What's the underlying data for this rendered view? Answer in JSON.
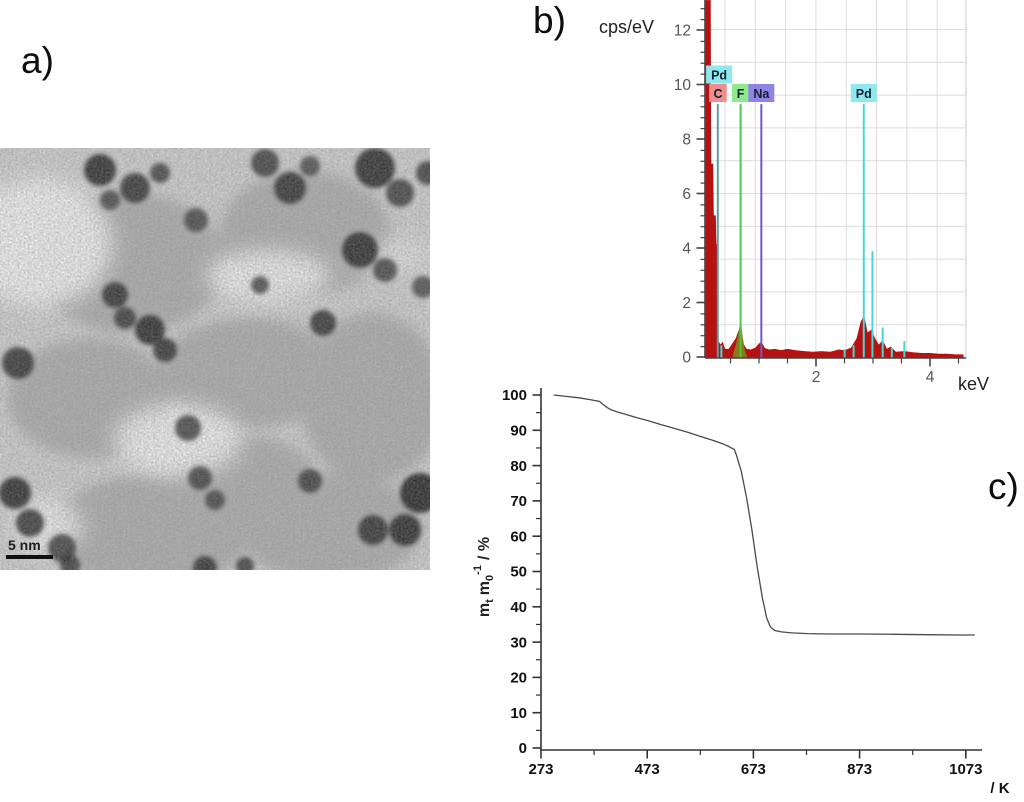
{
  "panels": {
    "a_label": "a)",
    "b_label": "b)",
    "c_label": "c)"
  },
  "tem": {
    "scale_bar_label": "5 nm"
  },
  "edx": {
    "y_axis_label": "cps/eV",
    "x_axis_label": "keV",
    "y_tick_labels": [
      "12",
      "10",
      "8",
      "6",
      "4",
      "2",
      "0"
    ],
    "x_tick_labels": [
      "2",
      "4"
    ],
    "element_labels": [
      {
        "label": "Pd",
        "keV": 0.3,
        "row": 0,
        "box_color": "#8ee9ee"
      },
      {
        "label": "C",
        "keV": 0.28,
        "row": 1,
        "box_color": "#ef8f8d"
      },
      {
        "label": "F",
        "keV": 0.677,
        "row": 1,
        "box_color": "#8fe98f"
      },
      {
        "label": "Na",
        "keV": 1.041,
        "row": 1,
        "box_color": "#8f83e3"
      },
      {
        "label": "Pd",
        "keV": 2.838,
        "row": 1,
        "box_color": "#8ee9ee"
      }
    ]
  },
  "tga": {
    "y_label_parts": {
      "m1": "m",
      "sub1": "t",
      "m2": "m",
      "sub2": "0",
      "sup2": "-1",
      "unit": "/ %"
    },
    "x_unit_label": "/ K",
    "y_tick_labels": [
      "100",
      "90",
      "80",
      "70",
      "60",
      "50",
      "40",
      "30",
      "20",
      "10",
      "0"
    ],
    "x_tick_labels": [
      "273",
      "473",
      "673",
      "873",
      "1073"
    ]
  },
  "chart_data": [
    {
      "id": "edx-spectrum",
      "type": "area",
      "title": "EDX spectrum",
      "xlabel": "keV",
      "ylabel": "cps/eV",
      "xlim": [
        0,
        4.6
      ],
      "ylim": [
        0,
        13.1
      ],
      "grid": true,
      "x_major_ticks": [
        2,
        4
      ],
      "x_minor_tick_step": 0.5,
      "y_major_ticks": [
        0,
        2,
        4,
        6,
        8,
        10,
        12
      ],
      "y_minor_tick_step": 0.4,
      "series": [
        {
          "name": "spectrum",
          "color": "#b51212",
          "points": [
            [
              0,
              0.3
            ],
            [
              0.02,
              13.1
            ],
            [
              0.145,
              13.1
            ],
            [
              0.155,
              7.1
            ],
            [
              0.19,
              7.1
            ],
            [
              0.2,
              5.2
            ],
            [
              0.235,
              5.2
            ],
            [
              0.245,
              4.15
            ],
            [
              0.275,
              4.15
            ],
            [
              0.285,
              0.6
            ],
            [
              0.32,
              0.45
            ],
            [
              0.36,
              0.55
            ],
            [
              0.4,
              0.3
            ],
            [
              0.47,
              0.3
            ],
            [
              0.52,
              0.45
            ],
            [
              0.6,
              0.7
            ],
            [
              0.64,
              0.95
            ],
            [
              0.677,
              1.05
            ],
            [
              0.72,
              0.5
            ],
            [
              0.78,
              0.3
            ],
            [
              0.86,
              0.28
            ],
            [
              0.94,
              0.35
            ],
            [
              1.0,
              0.5
            ],
            [
              1.04,
              0.55
            ],
            [
              1.1,
              0.33
            ],
            [
              1.18,
              0.28
            ],
            [
              1.28,
              0.3
            ],
            [
              1.38,
              0.25
            ],
            [
              1.5,
              0.3
            ],
            [
              1.65,
              0.25
            ],
            [
              1.8,
              0.22
            ],
            [
              1.95,
              0.2
            ],
            [
              2.1,
              0.22
            ],
            [
              2.25,
              0.2
            ],
            [
              2.4,
              0.28
            ],
            [
              2.5,
              0.25
            ],
            [
              2.62,
              0.35
            ],
            [
              2.72,
              0.7
            ],
            [
              2.79,
              1.3
            ],
            [
              2.84,
              1.5
            ],
            [
              2.9,
              0.9
            ],
            [
              2.97,
              1.0
            ],
            [
              3.03,
              0.7
            ],
            [
              3.1,
              0.45
            ],
            [
              3.17,
              0.6
            ],
            [
              3.24,
              0.3
            ],
            [
              3.31,
              0.38
            ],
            [
              3.4,
              0.2
            ],
            [
              3.55,
              0.22
            ],
            [
              3.7,
              0.18
            ],
            [
              3.85,
              0.15
            ],
            [
              4.0,
              0.15
            ],
            [
              4.15,
              0.12
            ],
            [
              4.3,
              0.12
            ],
            [
              4.45,
              0.1
            ],
            [
              4.58,
              0.1
            ]
          ]
        },
        {
          "name": "fluorine-peak",
          "color": "#8a7a1a",
          "points": [
            [
              0.55,
              0.1
            ],
            [
              0.6,
              0.45
            ],
            [
              0.64,
              0.85
            ],
            [
              0.677,
              1.3
            ],
            [
              0.71,
              0.7
            ],
            [
              0.75,
              0.2
            ],
            [
              0.78,
              0.05
            ]
          ]
        }
      ],
      "element_marker_lines": [
        {
          "element": "C",
          "keV": 0.277,
          "color": "#5f9ea0",
          "top": 9.3
        },
        {
          "element": "Pd",
          "keV": 0.34,
          "color": "#49d6d6",
          "top": 0.45
        },
        {
          "element": "F",
          "keV": 0.677,
          "color": "#4fc44f",
          "top": 9.3
        },
        {
          "element": "Na",
          "keV": 1.041,
          "color": "#6a5acd",
          "top": 9.3
        },
        {
          "element": "Pd",
          "keV": 2.503,
          "color": "#49d6d6",
          "top": 0.3
        },
        {
          "element": "Pd",
          "keV": 2.66,
          "color": "#49d6d6",
          "top": 0.45
        },
        {
          "element": "Pd",
          "keV": 2.838,
          "color": "#49d6d6",
          "top": 9.3
        },
        {
          "element": "Pd",
          "keV": 2.99,
          "color": "#49d6d6",
          "top": 3.9
        },
        {
          "element": "Pd",
          "keV": 3.17,
          "color": "#49d6d6",
          "top": 1.1
        },
        {
          "element": "Pd",
          "keV": 3.33,
          "color": "#49d6d6",
          "top": 0.35
        },
        {
          "element": "Pd",
          "keV": 3.55,
          "color": "#49d6d6",
          "top": 0.6
        }
      ]
    },
    {
      "id": "tga-curve",
      "type": "line",
      "title": "Thermogravimetric mass loss",
      "xlabel": "/ K",
      "ylabel": "mt m0^-1 / %",
      "xlim": [
        273,
        1120
      ],
      "ylim": [
        0,
        100
      ],
      "grid": false,
      "x_major_ticks": [
        273,
        473,
        673,
        873,
        1073
      ],
      "x_minor_ticks": [
        373,
        573,
        773,
        973
      ],
      "y_major_tick_step": 10,
      "y_minor_tick_step": 5,
      "series": [
        {
          "name": "relative-mass",
          "color": "#4a4a4a",
          "points": [
            [
              297,
              100
            ],
            [
              320,
              99.6
            ],
            [
              345,
              99.2
            ],
            [
              365,
              98.7
            ],
            [
              383,
              98.2
            ],
            [
              390,
              97.3
            ],
            [
              398,
              96.4
            ],
            [
              405,
              95.8
            ],
            [
              415,
              95.3
            ],
            [
              435,
              94.4
            ],
            [
              455,
              93.5
            ],
            [
              475,
              92.7
            ],
            [
              500,
              91.6
            ],
            [
              525,
              90.5
            ],
            [
              550,
              89.4
            ],
            [
              575,
              88.2
            ],
            [
              600,
              87.0
            ],
            [
              615,
              86.2
            ],
            [
              628,
              85.3
            ],
            [
              637,
              84.6
            ],
            [
              641,
              83.0
            ],
            [
              650,
              78.5
            ],
            [
              660,
              71.0
            ],
            [
              670,
              62.0
            ],
            [
              680,
              51.5
            ],
            [
              690,
              42.5
            ],
            [
              698,
              36.8
            ],
            [
              705,
              34.3
            ],
            [
              713,
              33.3
            ],
            [
              726,
              32.9
            ],
            [
              745,
              32.6
            ],
            [
              775,
              32.4
            ],
            [
              820,
              32.3
            ],
            [
              880,
              32.3
            ],
            [
              940,
              32.2
            ],
            [
              1000,
              32.1
            ],
            [
              1060,
              32.0
            ],
            [
              1090,
              32.0
            ]
          ]
        }
      ]
    }
  ]
}
